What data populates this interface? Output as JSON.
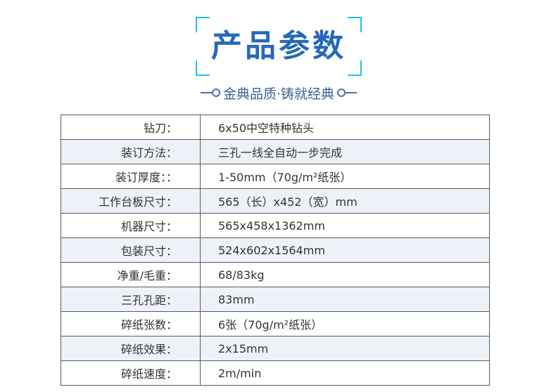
{
  "header": {
    "title": "产品参数",
    "subtitle": "金典品质·铸就经典"
  },
  "colors": {
    "title": "#2568bb",
    "bracket": "#1bc3ea",
    "row_alt": "#edf2f9"
  },
  "specs": [
    {
      "label": "钻刀：",
      "value": "6x50中空特种钻头"
    },
    {
      "label": "装订方法：",
      "value": "三孔一线全自动一步完成"
    },
    {
      "label": "装订厚度：：",
      "value": "1-50mm（70g/m²纸张）"
    },
    {
      "label": "工作台板尺寸：",
      "value": "565（长）x452（宽）mm"
    },
    {
      "label": "机器尺寸：",
      "value": "565x458x1362mm"
    },
    {
      "label": "包装尺寸：",
      "value": "524x602x1564mm"
    },
    {
      "label": "净重/毛重：",
      "value": "68/83kg"
    },
    {
      "label": "三孔孔距：",
      "value": "83mm"
    },
    {
      "label": "碎纸张数：",
      "value": "6张（70g/m²纸张）"
    },
    {
      "label": "碎纸效果：",
      "value": "2x15mm"
    },
    {
      "label": "碎纸速度：",
      "value": "2m/min"
    }
  ]
}
